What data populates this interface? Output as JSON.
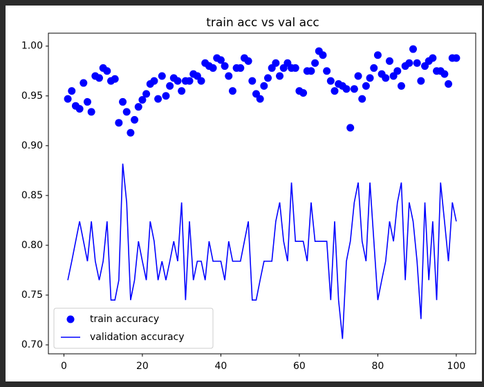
{
  "chart_data": {
    "type": "line",
    "title": "train acc vs val acc",
    "x": [
      1,
      2,
      3,
      4,
      5,
      6,
      7,
      8,
      9,
      10,
      11,
      12,
      13,
      14,
      15,
      16,
      17,
      18,
      19,
      20,
      21,
      22,
      23,
      24,
      25,
      26,
      27,
      28,
      29,
      30,
      31,
      32,
      33,
      34,
      35,
      36,
      37,
      38,
      39,
      40,
      41,
      42,
      43,
      44,
      45,
      46,
      47,
      48,
      49,
      50,
      51,
      52,
      53,
      54,
      55,
      56,
      57,
      58,
      59,
      60,
      61,
      62,
      63,
      64,
      65,
      66,
      67,
      68,
      69,
      70,
      71,
      72,
      73,
      74,
      75,
      76,
      77,
      78,
      79,
      80,
      81,
      82,
      83,
      84,
      85,
      86,
      87,
      88,
      89,
      90,
      91,
      92,
      93,
      94,
      95,
      96,
      97,
      98,
      99,
      100
    ],
    "series": [
      {
        "name": "train accuracy",
        "type": "scatter",
        "color": "#0000ff",
        "values": [
          0.947,
          0.955,
          0.94,
          0.937,
          0.963,
          0.944,
          0.934,
          0.97,
          0.968,
          0.978,
          0.975,
          0.965,
          0.967,
          0.923,
          0.944,
          0.934,
          0.913,
          0.926,
          0.939,
          0.946,
          0.952,
          0.962,
          0.965,
          0.947,
          0.97,
          0.95,
          0.96,
          0.968,
          0.965,
          0.955,
          0.965,
          0.965,
          0.972,
          0.97,
          0.965,
          0.983,
          0.98,
          0.978,
          0.988,
          0.986,
          0.98,
          0.97,
          0.955,
          0.978,
          0.978,
          0.988,
          0.985,
          0.965,
          0.952,
          0.947,
          0.96,
          0.968,
          0.978,
          0.983,
          0.97,
          0.978,
          0.983,
          0.978,
          0.978,
          0.955,
          0.953,
          0.975,
          0.975,
          0.983,
          0.995,
          0.991,
          0.975,
          0.965,
          0.955,
          0.962,
          0.96,
          0.957,
          0.918,
          0.957,
          0.97,
          0.947,
          0.96,
          0.968,
          0.978,
          0.991,
          0.972,
          0.968,
          0.985,
          0.97,
          0.975,
          0.96,
          0.98,
          0.983,
          0.997,
          0.983,
          0.965,
          0.98,
          0.985,
          0.988,
          0.975,
          0.975,
          0.972,
          0.962,
          0.988,
          0.988
        ]
      },
      {
        "name": "validation accuracy",
        "type": "line",
        "color": "#0000ff",
        "values": [
          0.765,
          0.784,
          0.804,
          0.824,
          0.804,
          0.784,
          0.824,
          0.784,
          0.765,
          0.784,
          0.824,
          0.745,
          0.745,
          0.765,
          0.882,
          0.843,
          0.745,
          0.765,
          0.804,
          0.784,
          0.765,
          0.824,
          0.804,
          0.765,
          0.784,
          0.765,
          0.784,
          0.804,
          0.784,
          0.843,
          0.745,
          0.824,
          0.765,
          0.784,
          0.784,
          0.765,
          0.804,
          0.784,
          0.784,
          0.784,
          0.765,
          0.804,
          0.784,
          0.784,
          0.784,
          0.804,
          0.824,
          0.745,
          0.745,
          0.765,
          0.784,
          0.784,
          0.784,
          0.824,
          0.843,
          0.804,
          0.784,
          0.863,
          0.804,
          0.804,
          0.804,
          0.784,
          0.843,
          0.804,
          0.804,
          0.804,
          0.804,
          0.745,
          0.824,
          0.745,
          0.706,
          0.784,
          0.804,
          0.843,
          0.863,
          0.804,
          0.784,
          0.863,
          0.804,
          0.745,
          0.765,
          0.784,
          0.824,
          0.804,
          0.843,
          0.863,
          0.765,
          0.843,
          0.824,
          0.784,
          0.726,
          0.843,
          0.765,
          0.824,
          0.745,
          0.863,
          0.824,
          0.784,
          0.843,
          0.824
        ]
      }
    ],
    "xlim": [
      -3.95,
      104.95
    ],
    "xticks": [
      0,
      20,
      40,
      60,
      80,
      100
    ],
    "ylim": [
      0.691,
      1.013
    ],
    "yticks": [
      {
        "value": 0.7,
        "label": "0.70"
      },
      {
        "value": 0.75,
        "label": "0.75"
      },
      {
        "value": 0.8,
        "label": "0.80"
      },
      {
        "value": 0.85,
        "label": "0.85"
      },
      {
        "value": 0.9,
        "label": "0.90"
      },
      {
        "value": 0.95,
        "label": "0.95"
      },
      {
        "value": 1.0,
        "label": "1.00"
      }
    ],
    "legend": "lower left"
  }
}
